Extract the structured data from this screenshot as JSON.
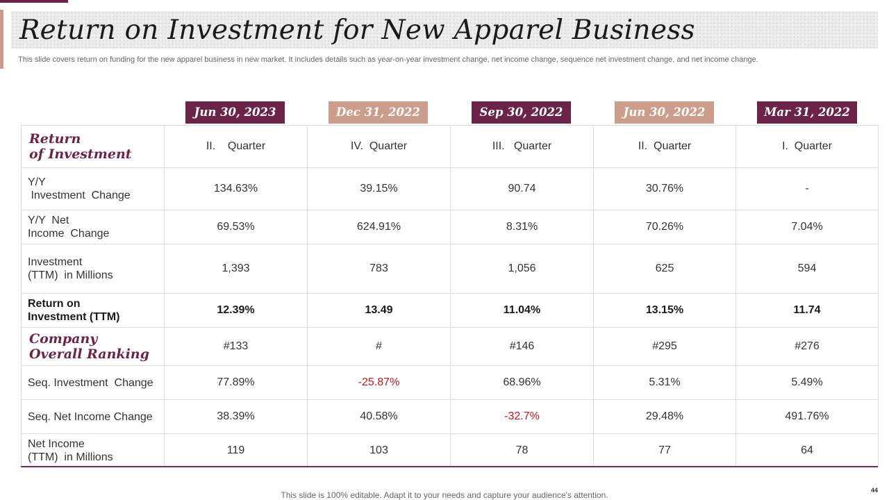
{
  "slide": {
    "title": "Return on Investment for New Apparel Business",
    "subtitle": "This slide covers return on funding for the new apparel business in new market. It includes details such as year-on-year investment change, net income change, sequence net investment change, and net income change.",
    "footer": "This slide is 100% editable. Adapt it to your needs and capture your audience's attention.",
    "page_number": "44"
  },
  "colors": {
    "accent_dark": "#6b2348",
    "accent_light": "#cc9d8b",
    "negative": "#c0161f"
  },
  "table": {
    "periods": [
      "Jun 30, 2023",
      "Dec 31, 2022",
      "Sep 30, 2022",
      "Jun 30, 2022",
      "Mar 31, 2022"
    ],
    "rows": [
      {
        "label": [
          "Return",
          "of Investment"
        ],
        "style": "script",
        "values": [
          "II.    Quarter",
          "IV.  Quarter",
          "III.   Quarter",
          "II.  Quarter",
          "I.  Quarter"
        ]
      },
      {
        "label": [
          "Y/Y",
          " Investment  Change"
        ],
        "style": "normal",
        "values": [
          "134.63%",
          "39.15%",
          "90.74",
          "30.76%",
          "-"
        ]
      },
      {
        "label": [
          "Y/Y  Net",
          "Income  Change"
        ],
        "style": "normal",
        "values": [
          "69.53%",
          "624.91%",
          "8.31%",
          "70.26%",
          "7.04%"
        ]
      },
      {
        "label": [
          "Investment",
          "(TTM)  in Millions"
        ],
        "style": "normal",
        "values": [
          "1,393",
          "783",
          "1,056",
          "625",
          "594"
        ]
      },
      {
        "label": [
          "Return on",
          "Investment (TTM)"
        ],
        "style": "bold",
        "values": [
          "12.39%",
          "13.49",
          "11.04%",
          "13.15%",
          "11.74"
        ]
      },
      {
        "label": [
          "Company",
          "Overall Ranking"
        ],
        "style": "script",
        "values": [
          "#133",
          "#",
          "#146",
          "#295",
          "#276"
        ]
      },
      {
        "label": [
          "Seq. Investment  Change"
        ],
        "style": "normal",
        "values": [
          "77.89%",
          "-25.87%",
          "68.96%",
          "5.31%",
          "5.49%"
        ]
      },
      {
        "label": [
          "Seq. Net Income Change"
        ],
        "style": "normal",
        "values": [
          "38.39%",
          "40.58%",
          "-32.7%",
          "29.48%",
          "491.76%"
        ]
      },
      {
        "label": [
          "Net Income",
          "(TTM)  in Millions"
        ],
        "style": "normal",
        "values": [
          "119",
          "103",
          "78",
          "77",
          "64"
        ]
      }
    ]
  }
}
